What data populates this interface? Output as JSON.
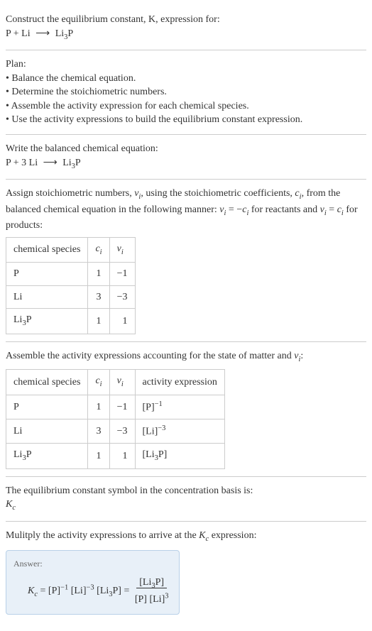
{
  "intro": {
    "line1": "Construct the equilibrium constant, K, expression for:",
    "equation_left": "P + Li",
    "equation_right": "Li",
    "equation_right_sub": "3",
    "equation_right_end": "P"
  },
  "plan": {
    "heading": "Plan:",
    "items": [
      "Balance the chemical equation.",
      "Determine the stoichiometric numbers.",
      "Assemble the activity expression for each chemical species.",
      "Use the activity expressions to build the equilibrium constant expression."
    ]
  },
  "balanced": {
    "heading": "Write the balanced chemical equation:",
    "left": "P + 3 Li",
    "right": "Li",
    "right_sub": "3",
    "right_end": "P"
  },
  "stoich": {
    "text_part1": "Assign stoichiometric numbers, ",
    "nu_i": "ν",
    "nu_i_sub": "i",
    "text_part2": ", using the stoichiometric coefficients, ",
    "c_i": "c",
    "c_i_sub": "i",
    "text_part3": ", from the balanced chemical equation in the following manner: ",
    "eq1_left": "ν",
    "eq1_left_sub": "i",
    "eq1_mid": " = −",
    "eq1_right": "c",
    "eq1_right_sub": "i",
    "text_part4": " for reactants and ",
    "eq2_left": "ν",
    "eq2_left_sub": "i",
    "eq2_mid": " = ",
    "eq2_right": "c",
    "eq2_right_sub": "i",
    "text_part5": " for products:",
    "table": {
      "headers": {
        "species": "chemical species",
        "ci": "c",
        "ci_sub": "i",
        "vi": "ν",
        "vi_sub": "i"
      },
      "rows": [
        {
          "species": "P",
          "species_sub": "",
          "ci": "1",
          "vi": "−1"
        },
        {
          "species": "Li",
          "species_sub": "",
          "ci": "3",
          "vi": "−3"
        },
        {
          "species": "Li",
          "species_sub": "3",
          "species_end": "P",
          "ci": "1",
          "vi": "1"
        }
      ]
    }
  },
  "activity": {
    "text_part1": "Assemble the activity expressions accounting for the state of matter and ",
    "nu": "ν",
    "nu_sub": "i",
    "text_part2": ":",
    "table": {
      "headers": {
        "species": "chemical species",
        "ci": "c",
        "ci_sub": "i",
        "vi": "ν",
        "vi_sub": "i",
        "activity": "activity expression"
      },
      "rows": [
        {
          "species": "P",
          "species_sub": "",
          "ci": "1",
          "vi": "−1",
          "act_base": "[P]",
          "act_exp": "−1"
        },
        {
          "species": "Li",
          "species_sub": "",
          "ci": "3",
          "vi": "−3",
          "act_base": "[Li]",
          "act_exp": "−3"
        },
        {
          "species": "Li",
          "species_sub": "3",
          "species_end": "P",
          "ci": "1",
          "vi": "1",
          "act_base": "[Li",
          "act_mid_sub": "3",
          "act_end": "P]",
          "act_exp": ""
        }
      ]
    }
  },
  "symbol": {
    "text": "The equilibrium constant symbol in the concentration basis is:",
    "kc": "K",
    "kc_sub": "c"
  },
  "multiply": {
    "text_part1": "Mulitply the activity expressions to arrive at the ",
    "kc": "K",
    "kc_sub": "c",
    "text_part2": " expression:"
  },
  "answer": {
    "label": "Answer:",
    "kc": "K",
    "kc_sub": "c",
    "eq": " = ",
    "term1": "[P]",
    "term1_exp": "−1",
    "term2": " [Li]",
    "term2_exp": "−3",
    "term3": " [Li",
    "term3_sub": "3",
    "term3_end": "P] = ",
    "num": "[Li",
    "num_sub": "3",
    "num_end": "P]",
    "den1": "[P] [Li]",
    "den_exp": "3"
  }
}
